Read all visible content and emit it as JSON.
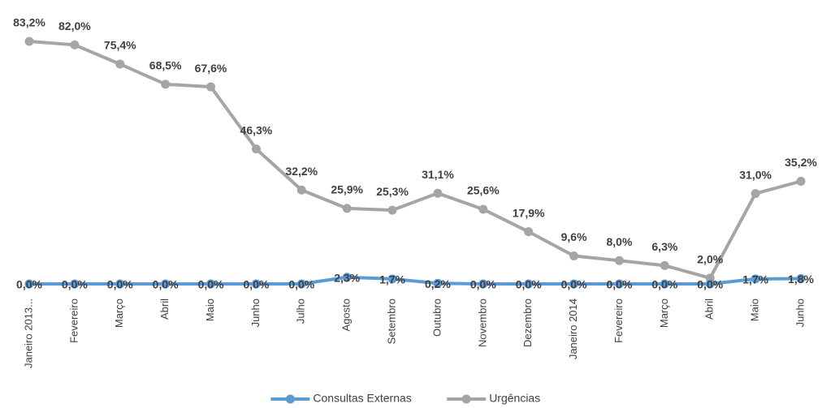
{
  "chart_data": {
    "type": "line",
    "categories": [
      "Janeiro 2013...",
      "Fevereiro",
      "Março",
      "Abril",
      "Maio",
      "Junho",
      "Julho",
      "Agosto",
      "Setembro",
      "Outubro",
      "Novembro",
      "Dezembro",
      "Janeiro 2014",
      "Fevereiro",
      "Março",
      "Abril",
      "Maio",
      "Junho"
    ],
    "series": [
      {
        "name": "Consultas Externas",
        "color": "#5b9bd5",
        "values": [
          0,
          0,
          0,
          0,
          0,
          0,
          0,
          2.3,
          1.7,
          0.2,
          0,
          0,
          0,
          0,
          0,
          0,
          1.7,
          1.8
        ],
        "value_labels": [
          "0,0%",
          "0,0%",
          "0,0%",
          "0,0%",
          "0,0%",
          "0,0%",
          "0,0%",
          "2,3%",
          "1,7%",
          "0,2%",
          "0,0%",
          "0,0%",
          "0,0%",
          "0,0%",
          "0,0%",
          "0,0%",
          "1,7%",
          "1,8%"
        ]
      },
      {
        "name": "Urgências",
        "color": "#a5a5a5",
        "values": [
          83.2,
          82.0,
          75.4,
          68.5,
          67.6,
          46.3,
          32.2,
          25.9,
          25.3,
          31.1,
          25.6,
          17.9,
          9.6,
          8.0,
          6.3,
          2.0,
          31.0,
          35.2
        ],
        "value_labels": [
          "83,2%",
          "82,0%",
          "75,4%",
          "68,5%",
          "67,6%",
          "46,3%",
          "32,2%",
          "25,9%",
          "25,3%",
          "31,1%",
          "25,6%",
          "17,9%",
          "9,6%",
          "8,0%",
          "6,3%",
          "2,0%",
          "31,0%",
          "35,2%"
        ]
      }
    ],
    "legend": "bottom"
  }
}
